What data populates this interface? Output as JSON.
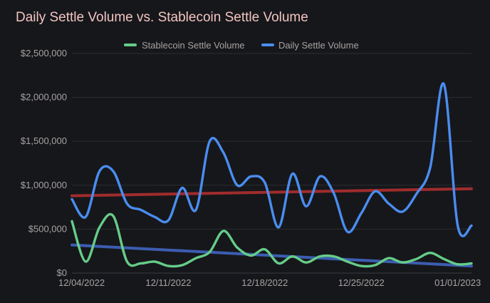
{
  "chart_data": {
    "type": "line",
    "title": "Daily Settle Volume vs. Stablecoin Settle Volume",
    "xlabel": "",
    "ylabel": "",
    "x": [
      "2022-12-04",
      "2022-12-05",
      "2022-12-06",
      "2022-12-07",
      "2022-12-08",
      "2022-12-09",
      "2022-12-10",
      "2022-12-11",
      "2022-12-12",
      "2022-12-13",
      "2022-12-14",
      "2022-12-15",
      "2022-12-16",
      "2022-12-17",
      "2022-12-18",
      "2022-12-19",
      "2022-12-20",
      "2022-12-21",
      "2022-12-22",
      "2022-12-23",
      "2022-12-24",
      "2022-12-25",
      "2022-12-26",
      "2022-12-27",
      "2022-12-28",
      "2022-12-29",
      "2022-12-30",
      "2022-12-31",
      "2023-01-01",
      "2023-01-02"
    ],
    "x_ticks": [
      "12/04/2022",
      "12/11/2022",
      "12/18/2022",
      "12/25/2022",
      "01/01/2023"
    ],
    "y_ticks": [
      "$0",
      "$500,000",
      "$1,000,000",
      "$1,500,000",
      "$2,000,000",
      "$2,500,000"
    ],
    "ylim": [
      0,
      2500000
    ],
    "grid": true,
    "legend_position": "top",
    "series": [
      {
        "name": "Stablecoin Settle Volume",
        "color": "#66cc88",
        "values": [
          590000,
          130000,
          520000,
          650000,
          130000,
          110000,
          130000,
          80000,
          90000,
          170000,
          240000,
          480000,
          290000,
          200000,
          270000,
          110000,
          190000,
          120000,
          190000,
          190000,
          130000,
          80000,
          90000,
          170000,
          120000,
          160000,
          230000,
          160000,
          100000,
          110000
        ]
      },
      {
        "name": "Daily Settle Volume",
        "color": "#4a8df0",
        "values": [
          840000,
          640000,
          1160000,
          1160000,
          790000,
          720000,
          640000,
          600000,
          970000,
          720000,
          1500000,
          1370000,
          1000000,
          1100000,
          1030000,
          520000,
          1130000,
          760000,
          1100000,
          910000,
          470000,
          680000,
          930000,
          790000,
          700000,
          900000,
          1200000,
          2150000,
          540000,
          540000
        ]
      }
    ],
    "trend_lines": [
      {
        "color": "#a02c2c",
        "values": [
          880000,
          960000
        ]
      },
      {
        "color": "#3c5db0",
        "values": [
          320000,
          80000
        ]
      }
    ]
  }
}
